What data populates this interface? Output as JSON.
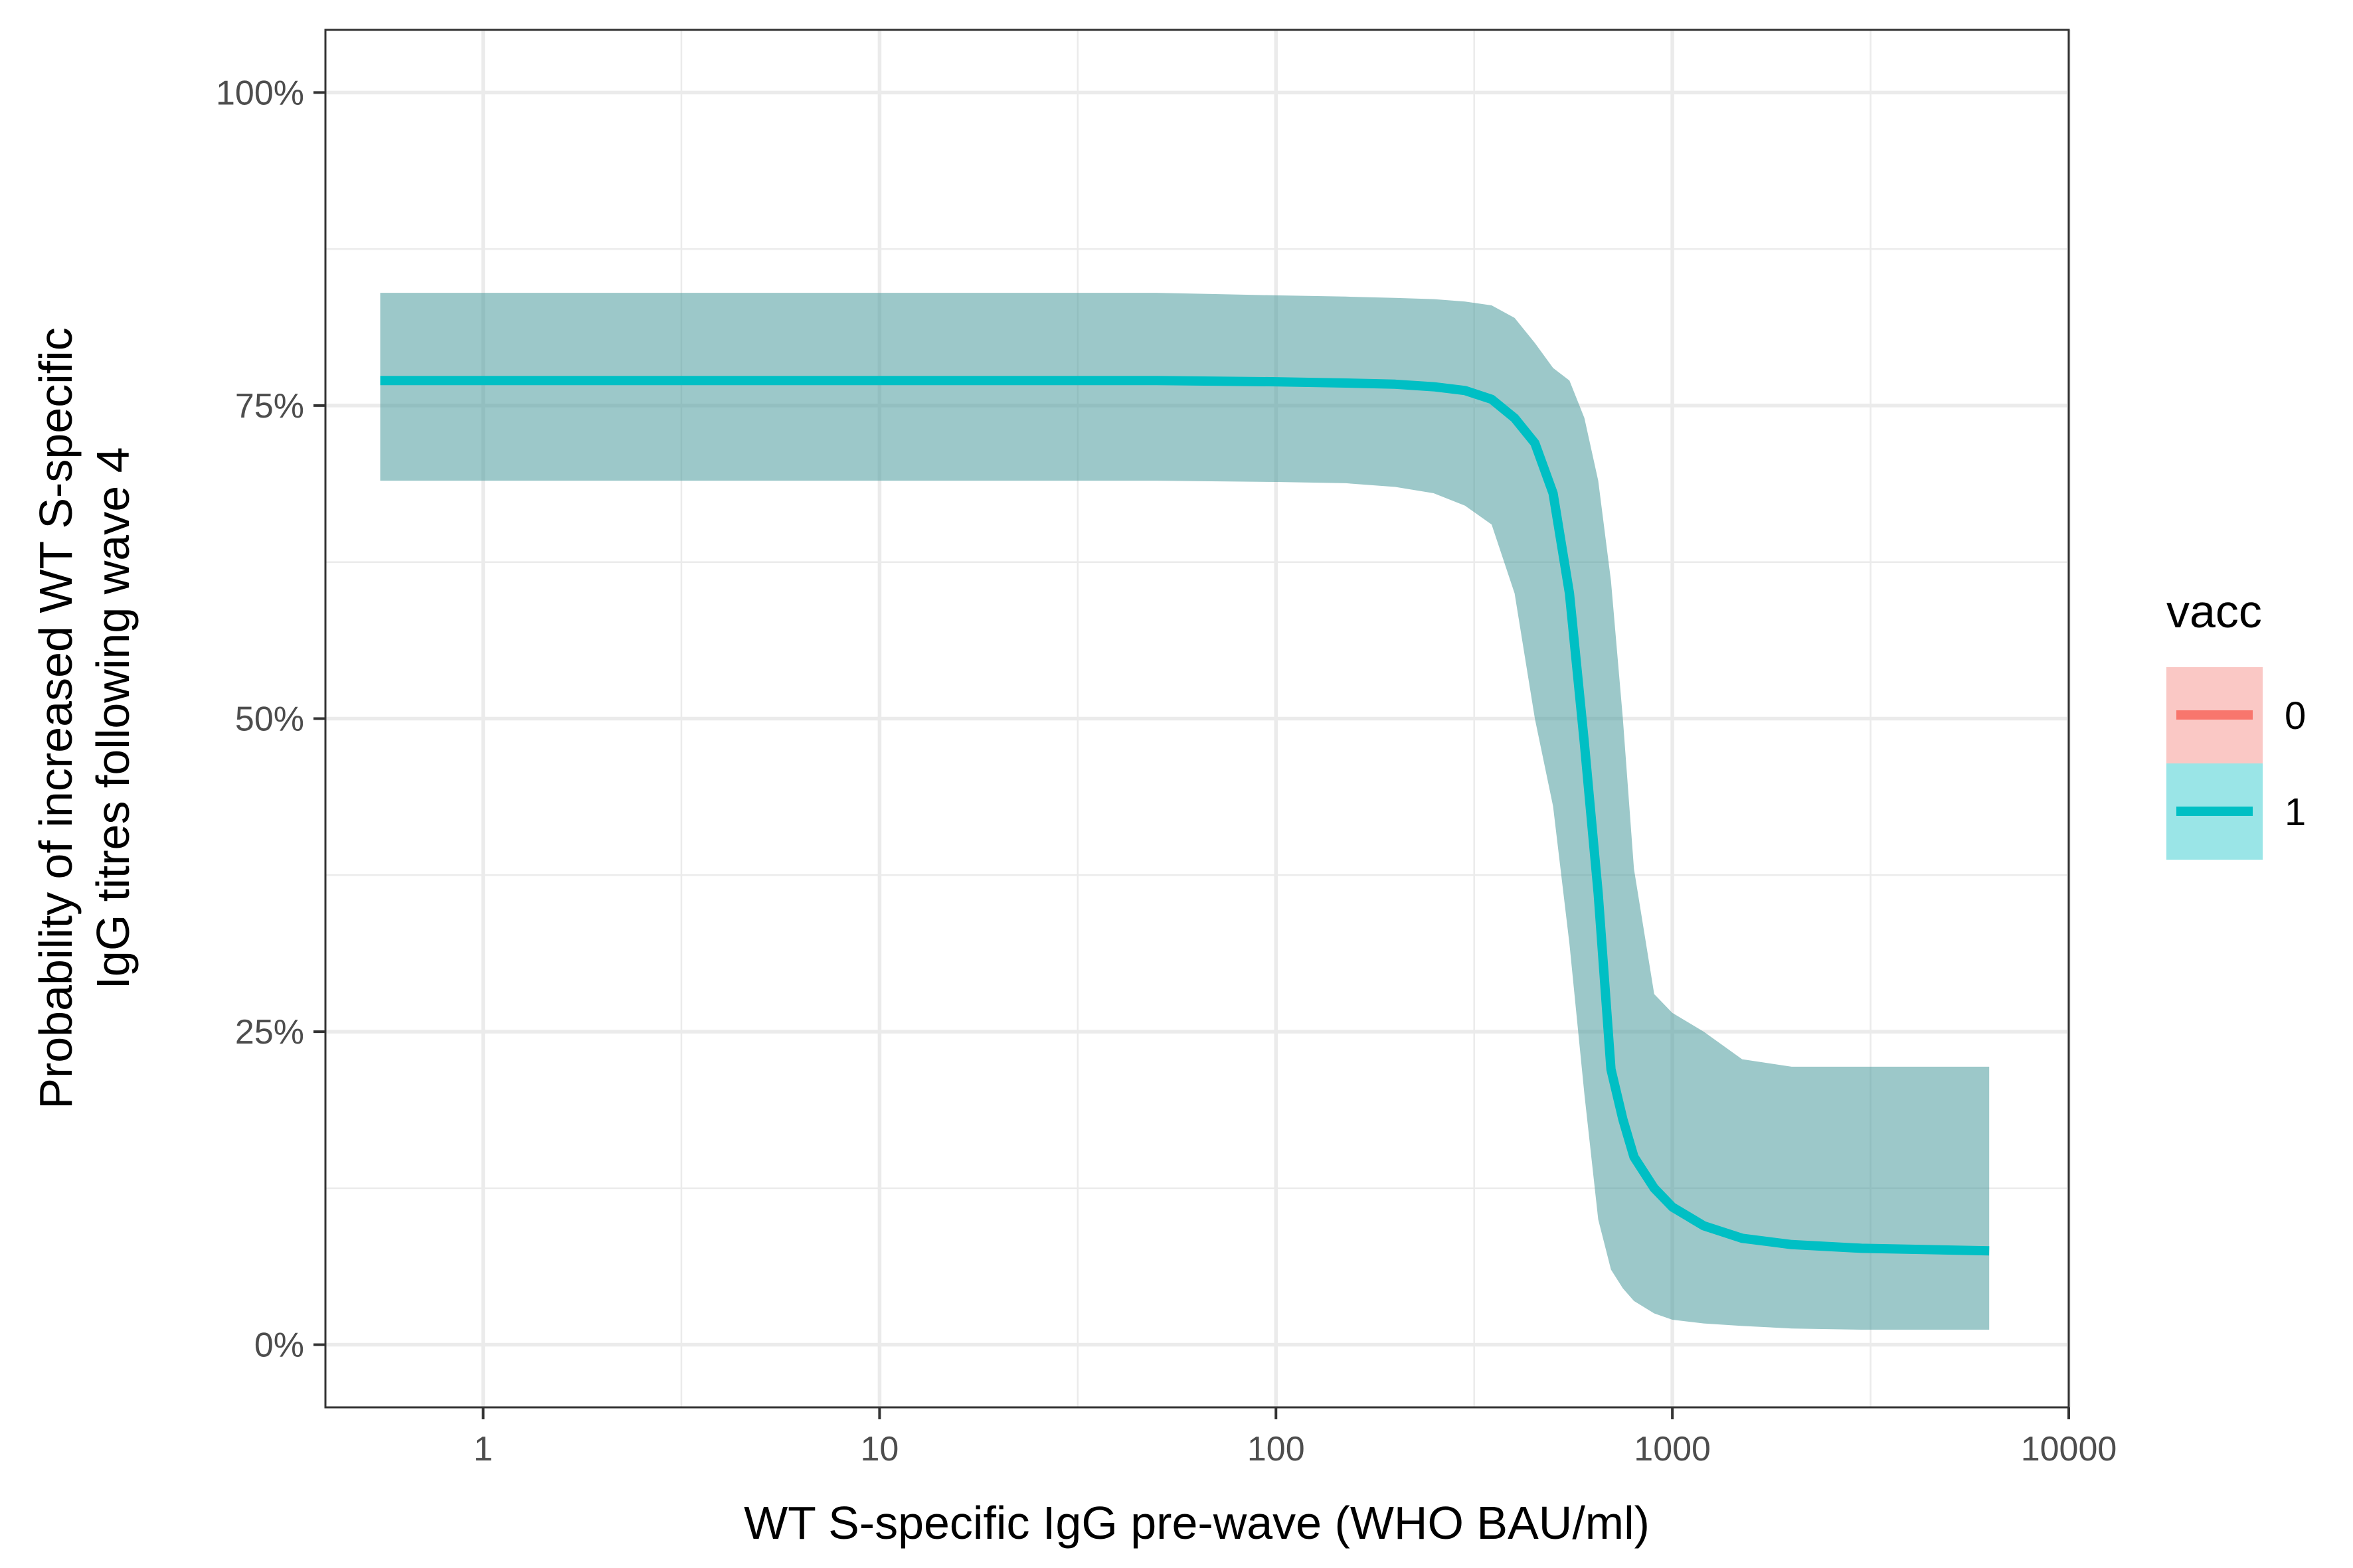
{
  "chart_data": {
    "type": "line",
    "title": "",
    "xlabel": "WT S-specific IgG pre-wave (WHO BAU/ml)",
    "ylabel": [
      "Probability of increased WT S-specific",
      "IgG titres following wave 4"
    ],
    "x_scale": "log10",
    "xlim": [
      0.4,
      10000
    ],
    "ylim": [
      -0.05,
      1.05
    ],
    "x_ticks": [
      1,
      10,
      100,
      1000,
      10000
    ],
    "x_tick_labels": [
      "1",
      "10",
      "100",
      "1000",
      "10000"
    ],
    "y_ticks": [
      0,
      0.25,
      0.5,
      0.75,
      1.0
    ],
    "y_tick_labels": [
      "0%",
      "25%",
      "50%",
      "75%",
      "100%"
    ],
    "grid": true,
    "legend": {
      "title": "vacc",
      "placement": "right",
      "entries": [
        {
          "label": "0",
          "line_color": "#F8766D",
          "fill_color": "#FAC8C5"
        },
        {
          "label": "1",
          "line_color": "#00BFC4",
          "fill_color": "#9AE5E7"
        }
      ]
    },
    "series": [
      {
        "name": "1",
        "color": "#00BFC4",
        "band_color": "#4A9A9C",
        "x": [
          0.55,
          1,
          10,
          50,
          100,
          150,
          200,
          250,
          300,
          350,
          400,
          450,
          500,
          550,
          600,
          650,
          700,
          750,
          800,
          900,
          1000,
          1200,
          1500,
          2000,
          3000,
          6300
        ],
        "y": [
          0.77,
          0.77,
          0.77,
          0.77,
          0.769,
          0.768,
          0.767,
          0.765,
          0.762,
          0.755,
          0.74,
          0.72,
          0.68,
          0.6,
          0.48,
          0.36,
          0.22,
          0.18,
          0.15,
          0.125,
          0.11,
          0.095,
          0.085,
          0.08,
          0.077,
          0.075
        ],
        "lower": [
          0.69,
          0.69,
          0.69,
          0.69,
          0.689,
          0.688,
          0.685,
          0.68,
          0.67,
          0.655,
          0.6,
          0.5,
          0.43,
          0.32,
          0.2,
          0.1,
          0.06,
          0.045,
          0.035,
          0.025,
          0.02,
          0.017,
          0.015,
          0.013,
          0.012,
          0.012
        ],
        "upper": [
          0.84,
          0.84,
          0.84,
          0.84,
          0.838,
          0.837,
          0.836,
          0.835,
          0.833,
          0.83,
          0.82,
          0.8,
          0.78,
          0.77,
          0.74,
          0.69,
          0.61,
          0.5,
          0.38,
          0.28,
          0.265,
          0.25,
          0.228,
          0.222,
          0.222,
          0.222
        ]
      }
    ]
  }
}
